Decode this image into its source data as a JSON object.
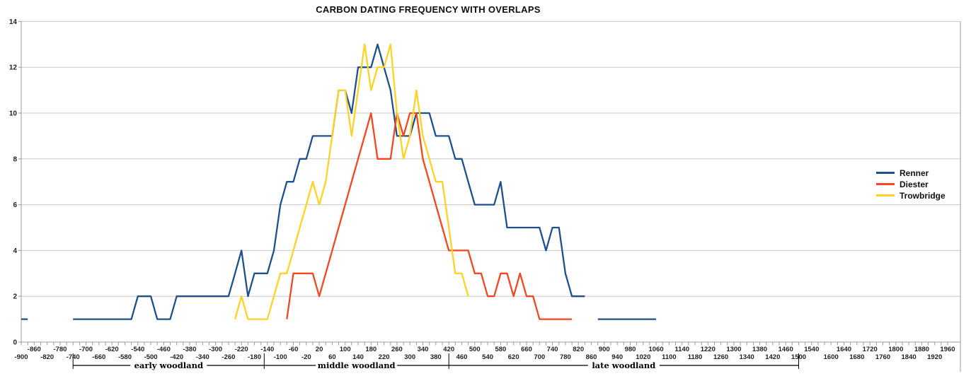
{
  "chart_data": {
    "type": "line",
    "title": "CARBON DATING FREQUENCY WITH OVERLAPS",
    "xlabel": "",
    "ylabel": "",
    "grid": "horizontal",
    "legend_position": "right",
    "y_axis": {
      "min": 0,
      "max": 14,
      "tick_step": 2,
      "tick_labels": [
        "0",
        "2",
        "4",
        "6",
        "8",
        "10",
        "12",
        "14"
      ]
    },
    "x_axis": {
      "min": -900,
      "max": 1960,
      "minor_tick_step": 20,
      "label_rows": [
        [
          -860,
          -780,
          -700,
          -620,
          -540,
          -460,
          -380,
          -300,
          -220,
          -140,
          -60,
          20,
          100,
          180,
          260,
          340,
          420,
          500,
          580,
          660,
          740,
          820,
          900,
          980,
          1060,
          1140,
          1220,
          1300,
          1380,
          1460,
          1540,
          1640,
          1720,
          1800,
          1880,
          1960
        ],
        [
          -900,
          -820,
          -740,
          -660,
          -580,
          -500,
          -420,
          -340,
          -260,
          -180,
          -100,
          -20,
          60,
          140,
          220,
          300,
          380,
          460,
          540,
          620,
          700,
          780,
          860,
          940,
          1020,
          1100,
          1180,
          1260,
          1340,
          1420,
          1500,
          1600,
          1680,
          1760,
          1840,
          1920
        ]
      ]
    },
    "periods": [
      {
        "label": "early woodland",
        "from": -740,
        "to": -150
      },
      {
        "label": "middle woodland",
        "from": -150,
        "to": 420
      },
      {
        "label": "late woodland",
        "from": 420,
        "to": 1500
      }
    ],
    "series": [
      {
        "name": "Renner",
        "color": "#1D508D",
        "segments": [
          [
            [
              -900,
              1
            ],
            [
              -880,
              1
            ]
          ],
          [
            [
              -740,
              1
            ],
            [
              -720,
              1
            ],
            [
              -700,
              1
            ],
            [
              -680,
              1
            ],
            [
              -660,
              1
            ],
            [
              -640,
              1
            ],
            [
              -620,
              1
            ],
            [
              -600,
              1
            ],
            [
              -580,
              1
            ],
            [
              -560,
              1
            ],
            [
              -540,
              2
            ],
            [
              -520,
              2
            ],
            [
              -500,
              2
            ],
            [
              -480,
              1
            ],
            [
              -460,
              1
            ],
            [
              -440,
              1
            ],
            [
              -420,
              2
            ],
            [
              -400,
              2
            ],
            [
              -380,
              2
            ],
            [
              -360,
              2
            ],
            [
              -340,
              2
            ],
            [
              -320,
              2
            ],
            [
              -300,
              2
            ],
            [
              -280,
              2
            ],
            [
              -260,
              2
            ],
            [
              -240,
              3
            ],
            [
              -220,
              4
            ],
            [
              -200,
              2
            ],
            [
              -180,
              3
            ],
            [
              -160,
              3
            ],
            [
              -140,
              3
            ],
            [
              -120,
              4
            ],
            [
              -100,
              6
            ],
            [
              -80,
              7
            ],
            [
              -60,
              7
            ],
            [
              -40,
              8
            ],
            [
              -20,
              8
            ],
            [
              0,
              9
            ],
            [
              20,
              9
            ],
            [
              40,
              9
            ],
            [
              60,
              9
            ],
            [
              80,
              11
            ],
            [
              100,
              11
            ],
            [
              120,
              10
            ],
            [
              140,
              12
            ],
            [
              160,
              12
            ],
            [
              180,
              12
            ],
            [
              200,
              13
            ],
            [
              220,
              12
            ],
            [
              240,
              11
            ],
            [
              260,
              9
            ],
            [
              280,
              9
            ],
            [
              300,
              9
            ],
            [
              320,
              10
            ],
            [
              340,
              10
            ],
            [
              360,
              10
            ],
            [
              380,
              9
            ],
            [
              400,
              9
            ],
            [
              420,
              9
            ],
            [
              440,
              8
            ],
            [
              460,
              8
            ],
            [
              480,
              7
            ],
            [
              500,
              6
            ],
            [
              520,
              6
            ],
            [
              540,
              6
            ],
            [
              560,
              6
            ],
            [
              580,
              7
            ],
            [
              600,
              5
            ],
            [
              620,
              5
            ],
            [
              640,
              5
            ],
            [
              660,
              5
            ],
            [
              680,
              5
            ],
            [
              700,
              5
            ],
            [
              720,
              4
            ],
            [
              740,
              5
            ],
            [
              760,
              5
            ],
            [
              780,
              3
            ],
            [
              800,
              2
            ],
            [
              820,
              2
            ],
            [
              840,
              2
            ]
          ],
          [
            [
              880,
              1
            ],
            [
              900,
              1
            ],
            [
              920,
              1
            ],
            [
              940,
              1
            ],
            [
              960,
              1
            ],
            [
              980,
              1
            ],
            [
              1000,
              1
            ],
            [
              1020,
              1
            ],
            [
              1040,
              1
            ],
            [
              1060,
              1
            ]
          ]
        ]
      },
      {
        "name": "Diester",
        "color": "#F4461F",
        "segments": [
          [
            [
              -80,
              1
            ],
            [
              -60,
              3
            ],
            [
              -40,
              3
            ],
            [
              -20,
              3
            ],
            [
              0,
              3
            ],
            [
              20,
              2
            ],
            [
              40,
              3
            ],
            [
              60,
              4
            ],
            [
              80,
              5
            ],
            [
              100,
              6
            ],
            [
              120,
              7
            ],
            [
              140,
              8
            ],
            [
              160,
              9
            ],
            [
              180,
              10
            ],
            [
              200,
              8
            ],
            [
              220,
              8
            ],
            [
              240,
              8
            ],
            [
              260,
              10
            ],
            [
              280,
              9
            ],
            [
              300,
              10
            ],
            [
              320,
              10
            ],
            [
              340,
              8
            ],
            [
              360,
              7
            ],
            [
              380,
              6
            ],
            [
              400,
              5
            ],
            [
              420,
              4
            ],
            [
              440,
              4
            ],
            [
              460,
              4
            ],
            [
              480,
              4
            ],
            [
              500,
              3
            ],
            [
              520,
              3
            ],
            [
              540,
              2
            ],
            [
              560,
              2
            ],
            [
              580,
              3
            ],
            [
              600,
              3
            ],
            [
              620,
              2
            ],
            [
              640,
              3
            ],
            [
              660,
              2
            ],
            [
              680,
              2
            ],
            [
              700,
              1
            ],
            [
              720,
              1
            ],
            [
              740,
              1
            ],
            [
              760,
              1
            ],
            [
              780,
              1
            ],
            [
              800,
              1
            ]
          ]
        ]
      },
      {
        "name": "Trowbridge",
        "color": "#FFD226",
        "segments": [
          [
            [
              -240,
              1
            ],
            [
              -220,
              2
            ],
            [
              -200,
              1
            ],
            [
              -180,
              1
            ],
            [
              -160,
              1
            ],
            [
              -140,
              1
            ],
            [
              -120,
              2
            ],
            [
              -100,
              3
            ],
            [
              -80,
              3
            ],
            [
              -60,
              4
            ],
            [
              -40,
              5
            ],
            [
              -20,
              6
            ],
            [
              0,
              7
            ],
            [
              20,
              6
            ],
            [
              40,
              7
            ],
            [
              60,
              9
            ],
            [
              80,
              11
            ],
            [
              100,
              11
            ],
            [
              120,
              9
            ],
            [
              140,
              11
            ],
            [
              160,
              13
            ],
            [
              180,
              11
            ],
            [
              200,
              12
            ],
            [
              220,
              12
            ],
            [
              240,
              13
            ],
            [
              260,
              10
            ],
            [
              280,
              8
            ],
            [
              300,
              9
            ],
            [
              320,
              11
            ],
            [
              340,
              9
            ],
            [
              360,
              8
            ],
            [
              380,
              7
            ],
            [
              400,
              7
            ],
            [
              420,
              5
            ],
            [
              440,
              3
            ],
            [
              460,
              3
            ],
            [
              480,
              2
            ]
          ]
        ]
      }
    ],
    "style": {
      "gridline_color": "#c9c9c9",
      "axis_color": "#9b9b9b",
      "background": "#ffffff",
      "line_width": 2.3
    }
  }
}
